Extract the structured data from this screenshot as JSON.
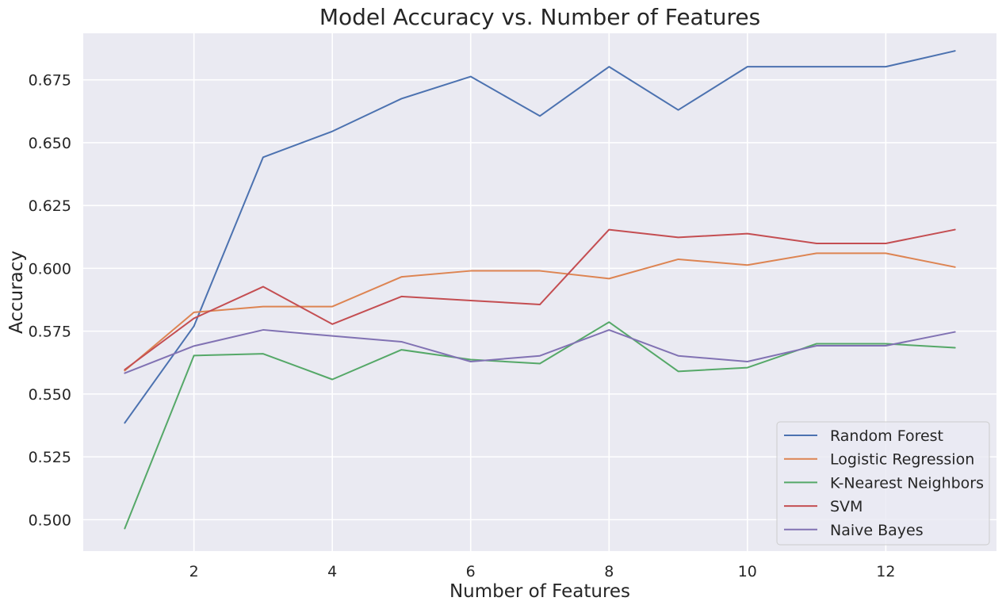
{
  "chart_data": {
    "type": "line",
    "title": "Model Accuracy vs. Number of Features",
    "xlabel": "Number of Features",
    "ylabel": "Accuracy",
    "x": [
      1,
      2,
      3,
      4,
      5,
      6,
      7,
      8,
      9,
      10,
      11,
      12,
      13
    ],
    "xlim": [
      0.4,
      13.6
    ],
    "ylim": [
      0.4875,
      0.6935
    ],
    "xticks": [
      2,
      4,
      6,
      8,
      10,
      12
    ],
    "xtick_labels": [
      "2",
      "4",
      "6",
      "8",
      "10",
      "12"
    ],
    "yticks": [
      0.5,
      0.525,
      0.55,
      0.575,
      0.6,
      0.625,
      0.65,
      0.675
    ],
    "ytick_labels": [
      "0.500",
      "0.525",
      "0.550",
      "0.575",
      "0.600",
      "0.625",
      "0.650",
      "0.675"
    ],
    "grid": true,
    "legend_position": "bottom-right",
    "series": [
      {
        "name": "Random Forest",
        "color": "#4c72b0",
        "values": [
          0.5385,
          0.577,
          0.6442,
          0.6545,
          0.6675,
          0.6763,
          0.6606,
          0.6802,
          0.663,
          0.6802,
          0.6802,
          0.6802,
          0.6865
        ]
      },
      {
        "name": "Logistic Regression",
        "color": "#dd8452",
        "values": [
          0.5593,
          0.5825,
          0.5848,
          0.5848,
          0.5966,
          0.599,
          0.599,
          0.5959,
          0.6036,
          0.6013,
          0.606,
          0.606,
          0.6005
        ]
      },
      {
        "name": "K-Nearest Neighbors",
        "color": "#55a868",
        "values": [
          0.4965,
          0.5653,
          0.566,
          0.5558,
          0.5676,
          0.5637,
          0.5621,
          0.5786,
          0.559,
          0.5605,
          0.57,
          0.57,
          0.5684
        ]
      },
      {
        "name": "SVM",
        "color": "#c44e52",
        "values": [
          0.5597,
          0.5801,
          0.5927,
          0.5778,
          0.5888,
          0.5872,
          0.5856,
          0.6154,
          0.6123,
          0.6138,
          0.6099,
          0.6099,
          0.6154
        ]
      },
      {
        "name": "Naive Bayes",
        "color": "#8172b3",
        "values": [
          0.5583,
          0.5691,
          0.5755,
          0.5731,
          0.5708,
          0.5629,
          0.5652,
          0.5755,
          0.5652,
          0.5629,
          0.5692,
          0.5692,
          0.5747
        ]
      }
    ]
  }
}
